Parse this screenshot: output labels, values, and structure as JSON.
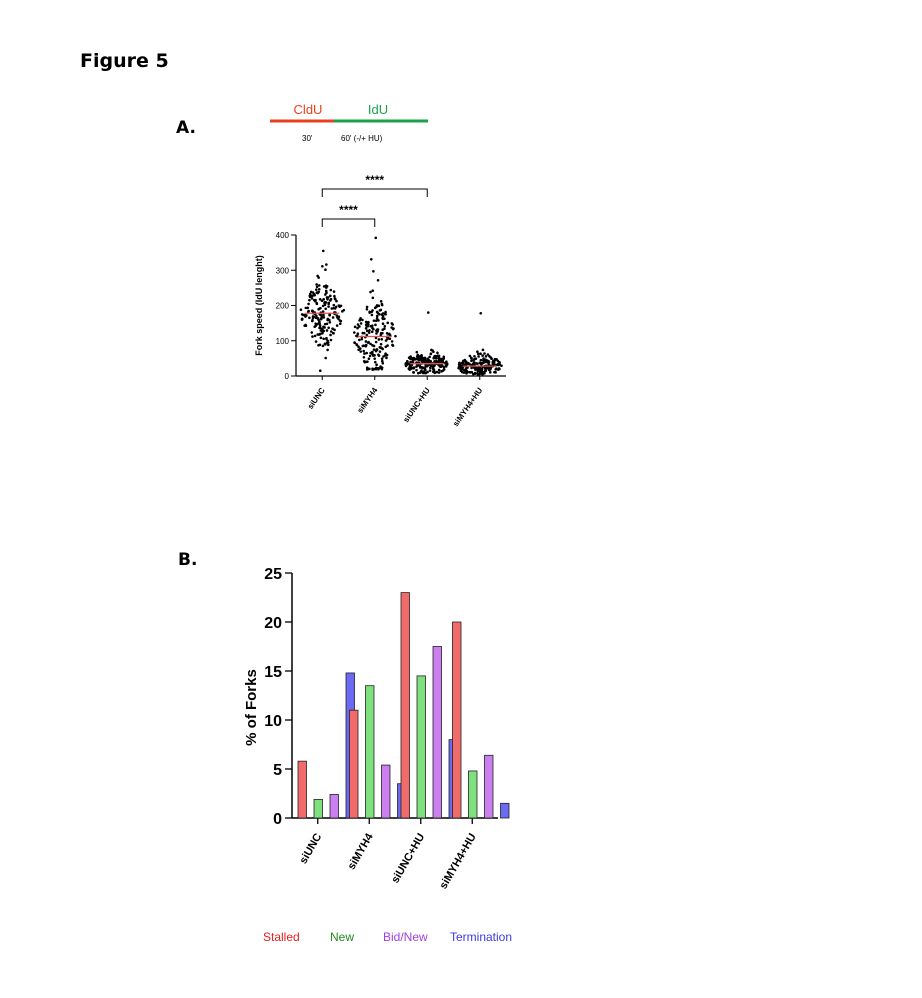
{
  "figure": {
    "title": "Figure 5"
  },
  "panel_a": {
    "label": "A.",
    "schema": {
      "cldu_label": "CldU",
      "idu_label": "IdU",
      "cldu_time": "30'",
      "idu_time": "60' (-/+ HU)",
      "cldu_color": "#e8401c",
      "idu_color": "#1aa34a"
    }
  },
  "panel_b": {
    "label": "B."
  },
  "chart_data": [
    {
      "type": "scatter",
      "title": "",
      "ylabel": "Fork speed (IdU lenght)",
      "xlabel": "",
      "ylim": [
        0,
        400
      ],
      "yticks": [
        0,
        100,
        200,
        300,
        400
      ],
      "categories": [
        "siUNC",
        "siMYH4",
        "siUNC+HU",
        "siMYH4+HU"
      ],
      "medians": [
        178,
        112,
        35,
        28
      ],
      "ranges": [
        [
          15,
          355
        ],
        [
          18,
          392
        ],
        [
          8,
          180
        ],
        [
          5,
          178
        ]
      ],
      "median_color": "#e05050",
      "significance": [
        {
          "groups": [
            "siUNC",
            "siMYH4"
          ],
          "label": "****"
        },
        {
          "groups": [
            "siUNC",
            "siUNC+HU"
          ],
          "label": "****"
        }
      ]
    },
    {
      "type": "bar",
      "title": "",
      "ylabel": "% of Forks",
      "xlabel": "",
      "ylim": [
        0,
        25
      ],
      "yticks": [
        0,
        5,
        10,
        15,
        20,
        25
      ],
      "categories": [
        "siUNC",
        "siMYH4",
        "siUNC+HU",
        "siMYH4+HU"
      ],
      "series": [
        {
          "name": "Stalled",
          "color": "#f26b6b",
          "text_color": "#e02020",
          "values": [
            5.8,
            11.0,
            23.0,
            20.0
          ]
        },
        {
          "name": "New",
          "color": "#7fe07f",
          "text_color": "#1f8a1f",
          "values": [
            1.9,
            13.5,
            14.5,
            4.8
          ]
        },
        {
          "name": "Bid/New",
          "color": "#cc7ff0",
          "text_color": "#a040e0",
          "values": [
            2.4,
            5.4,
            17.5,
            6.4
          ]
        },
        {
          "name": "Termination",
          "color": "#6a6af2",
          "text_color": "#3a3ae0",
          "values": [
            14.8,
            3.5,
            8.0,
            1.5
          ]
        }
      ],
      "legend_position": "bottom"
    }
  ]
}
